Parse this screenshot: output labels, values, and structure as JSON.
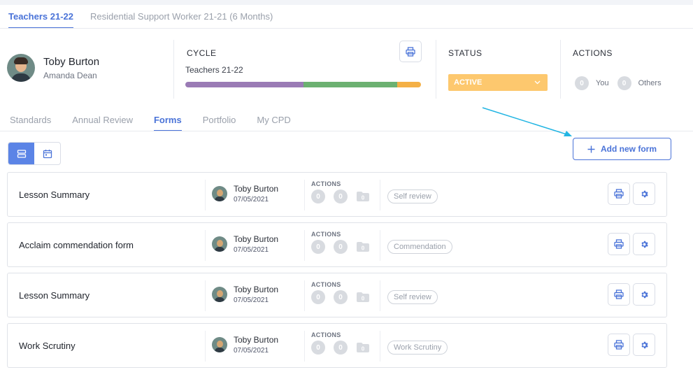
{
  "top_tabs": [
    {
      "label": "Teachers 21-22"
    },
    {
      "label": "Residential Support Worker 21-21 (6 Months)"
    }
  ],
  "profile": {
    "name": "Toby Burton",
    "manager": "Amanda Dean"
  },
  "cycle": {
    "heading": "CYCLE",
    "name": "Teachers 21-22",
    "progress_segments": [
      {
        "fraction": 0.5,
        "color": "#9a7bb5"
      },
      {
        "fraction": 0.4,
        "color": "#6cb171"
      },
      {
        "fraction": 0.1,
        "color": "#f4b046"
      }
    ]
  },
  "status": {
    "heading": "STATUS",
    "value": "ACTIVE",
    "color": "#fdc86e"
  },
  "actions_summary": {
    "heading": "ACTIONS",
    "you_count": "0",
    "you_label": "You",
    "others_count": "0",
    "others_label": "Others"
  },
  "sub_tabs": [
    {
      "label": "Standards"
    },
    {
      "label": "Annual Review"
    },
    {
      "label": "Forms"
    },
    {
      "label": "Portfolio"
    },
    {
      "label": "My CPD"
    }
  ],
  "add_form_label": "Add new form",
  "forms": [
    {
      "title": "Lesson Summary",
      "person": "Toby Burton",
      "date": "07/05/2021",
      "actions_label": "ACTIONS",
      "count1": "0",
      "count2": "0",
      "tag": "Self review"
    },
    {
      "title": "Acclaim commendation form",
      "person": "Toby Burton",
      "date": "07/05/2021",
      "actions_label": "ACTIONS",
      "count1": "0",
      "count2": "0",
      "tag": "Commendation"
    },
    {
      "title": "Lesson Summary",
      "person": "Toby Burton",
      "date": "07/05/2021",
      "actions_label": "ACTIONS",
      "count1": "0",
      "count2": "0",
      "tag": "Self review"
    },
    {
      "title": "Work Scrutiny",
      "person": "Toby Burton",
      "date": "07/05/2021",
      "actions_label": "ACTIONS",
      "count1": "0",
      "count2": "0",
      "tag": "Work Scrutiny"
    }
  ],
  "colors": {
    "accent": "#4a73d8",
    "annotation_arrow": "#22b5e3"
  }
}
